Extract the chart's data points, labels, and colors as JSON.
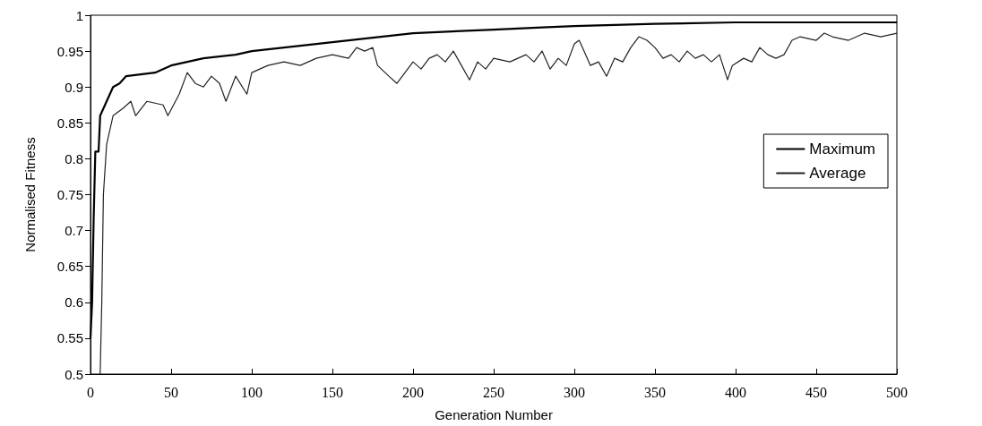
{
  "chart_data": {
    "type": "line",
    "xlabel": "Generation Number",
    "ylabel": "Normalised Fitness",
    "xlim": [
      0,
      500
    ],
    "xticks": [
      0,
      50,
      100,
      150,
      200,
      250,
      300,
      350,
      400,
      450,
      500
    ],
    "ylim": [
      0.5,
      1
    ],
    "yticks": [
      0.5,
      0.55,
      0.6,
      0.65,
      0.7,
      0.75,
      0.8,
      0.85,
      0.9,
      0.95,
      1
    ],
    "grid": false,
    "legend": "right",
    "marker": "none",
    "line_style": "solid",
    "series": [
      {
        "name": "Maximum",
        "color": "#000000",
        "x": [
          0,
          1,
          2,
          3,
          5,
          6,
          8,
          10,
          14,
          18,
          20,
          22,
          40,
          50,
          70,
          90,
          100,
          120,
          140,
          160,
          180,
          200,
          230,
          250,
          280,
          300,
          350,
          400,
          500
        ],
        "values": [
          0.55,
          0.6,
          0.72,
          0.81,
          0.81,
          0.86,
          0.87,
          0.88,
          0.9,
          0.905,
          0.91,
          0.915,
          0.92,
          0.93,
          0.94,
          0.945,
          0.95,
          0.955,
          0.96,
          0.965,
          0.97,
          0.975,
          0.978,
          0.98,
          0.983,
          0.985,
          0.988,
          0.99,
          0.99
        ]
      },
      {
        "name": "Average",
        "color": "#222222",
        "x": [
          6,
          7,
          8,
          10,
          14,
          20,
          25,
          28,
          35,
          45,
          48,
          55,
          60,
          65,
          70,
          75,
          80,
          84,
          90,
          97,
          100,
          110,
          120,
          130,
          140,
          150,
          160,
          165,
          170,
          175,
          178,
          185,
          190,
          195,
          200,
          205,
          210,
          215,
          220,
          225,
          230,
          235,
          240,
          245,
          250,
          260,
          270,
          275,
          280,
          285,
          290,
          295,
          300,
          303,
          306,
          310,
          315,
          320,
          325,
          330,
          335,
          340,
          345,
          350,
          355,
          360,
          365,
          370,
          375,
          380,
          385,
          390,
          395,
          398,
          405,
          410,
          415,
          420,
          425,
          430,
          435,
          440,
          450,
          455,
          460,
          470,
          480,
          490,
          500
        ],
        "values": [
          0.5,
          0.6,
          0.75,
          0.82,
          0.86,
          0.87,
          0.88,
          0.86,
          0.88,
          0.875,
          0.86,
          0.89,
          0.92,
          0.905,
          0.9,
          0.915,
          0.905,
          0.88,
          0.915,
          0.89,
          0.92,
          0.93,
          0.935,
          0.93,
          0.94,
          0.945,
          0.94,
          0.955,
          0.95,
          0.955,
          0.93,
          0.915,
          0.905,
          0.92,
          0.935,
          0.925,
          0.94,
          0.945,
          0.935,
          0.95,
          0.93,
          0.91,
          0.935,
          0.925,
          0.94,
          0.935,
          0.945,
          0.935,
          0.95,
          0.925,
          0.94,
          0.93,
          0.96,
          0.965,
          0.95,
          0.93,
          0.935,
          0.915,
          0.94,
          0.935,
          0.955,
          0.97,
          0.965,
          0.955,
          0.94,
          0.945,
          0.935,
          0.95,
          0.94,
          0.945,
          0.935,
          0.945,
          0.91,
          0.93,
          0.94,
          0.935,
          0.955,
          0.945,
          0.94,
          0.945,
          0.965,
          0.97,
          0.965,
          0.975,
          0.97,
          0.965,
          0.975,
          0.97,
          0.975
        ]
      }
    ]
  }
}
